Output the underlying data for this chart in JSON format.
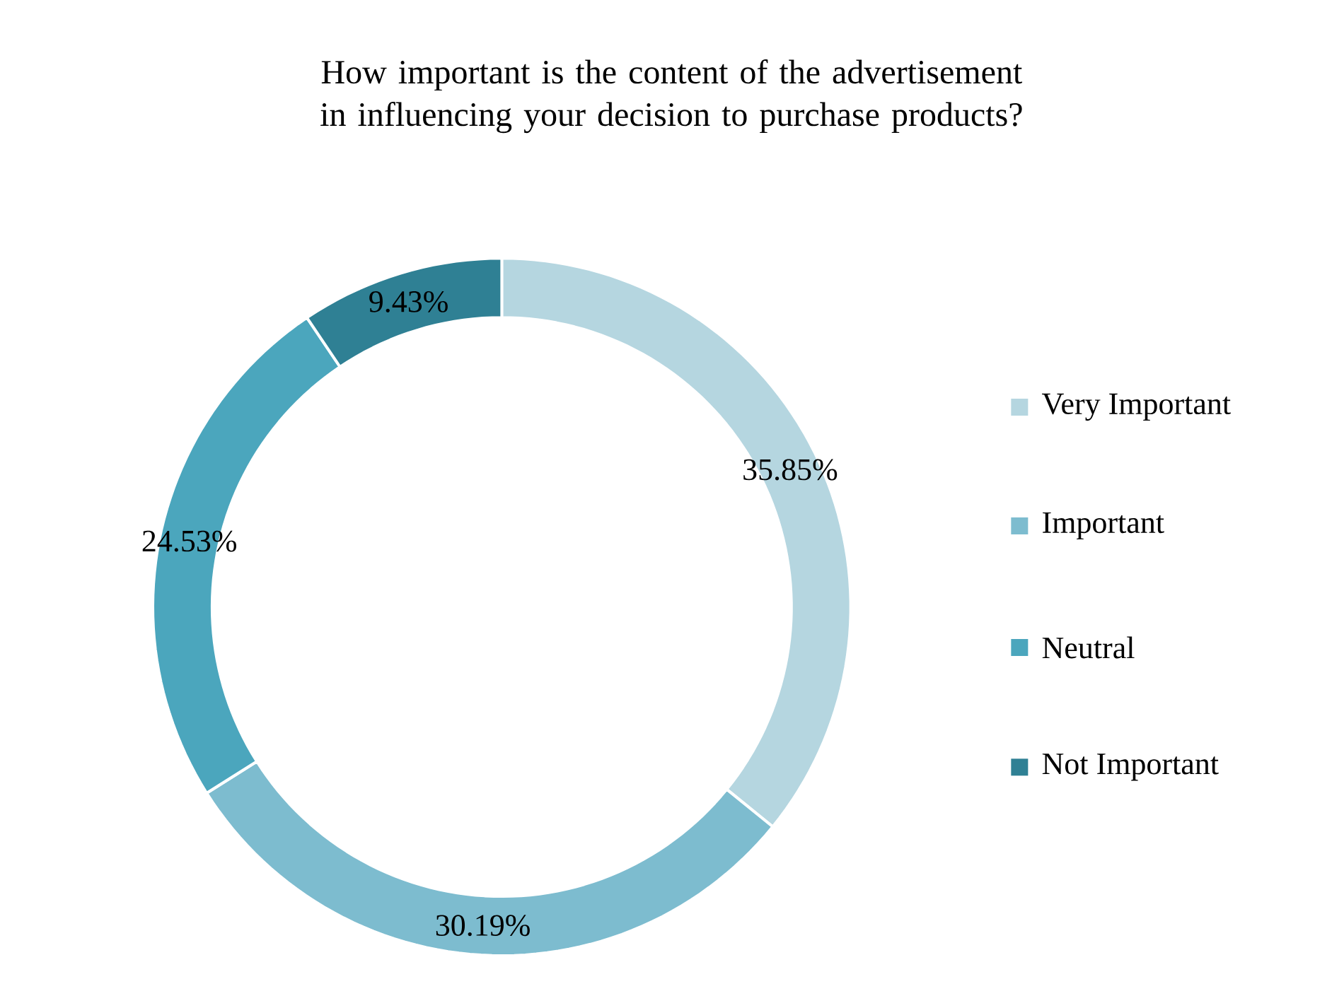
{
  "chart_data": {
    "type": "donut",
    "title": "How important is the content of the advertisement in influencing your decision to purchase products?",
    "categories": [
      "Very Important",
      "Important",
      "Neutral",
      "Not Important"
    ],
    "values": [
      35.85,
      30.19,
      24.53,
      9.43
    ],
    "value_labels": [
      "35.85%",
      "30.19%",
      "24.53%",
      "9.43%"
    ],
    "colors": [
      "#b5d6e0",
      "#7dbccf",
      "#4ba6bd",
      "#2f8094"
    ],
    "legend": "right"
  }
}
